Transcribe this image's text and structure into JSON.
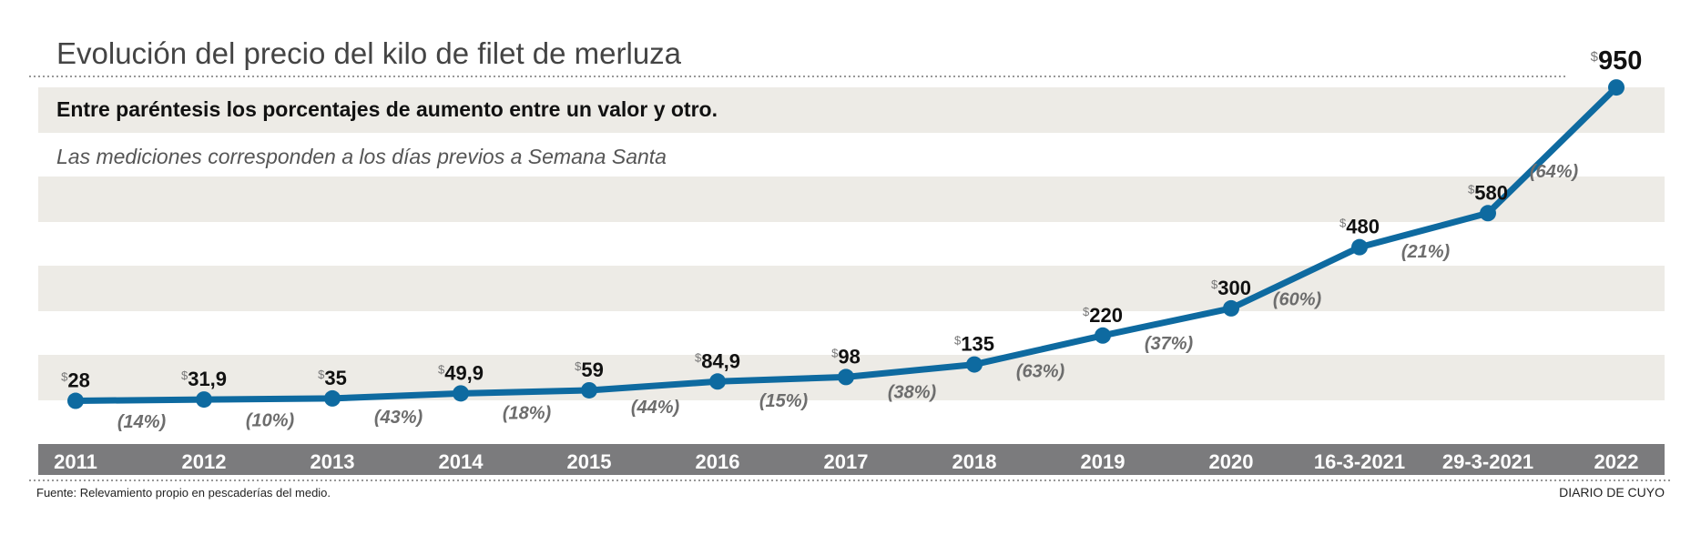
{
  "header": {
    "title": "Evolución del precio del kilo de filet de merluza",
    "note_bold": "Entre paréntesis los porcentajes de aumento entre un valor y otro.",
    "note_italic": "Las mediciones corresponden a los días previos a Semana Santa"
  },
  "footer": {
    "source": "Fuente: Relevamiento propio en pescaderías del medio.",
    "brand": "DIARIO DE CUYO"
  },
  "colors": {
    "line": "#0e6aa0",
    "band": "#edebe6",
    "axis_bar": "#7b7b7d",
    "pct_text": "#6d6d6d",
    "title_text": "#444444"
  },
  "chart_data": {
    "type": "line",
    "currency_symbol": "$",
    "categories": [
      "2011",
      "2012",
      "2013",
      "2014",
      "2015",
      "2016",
      "2017",
      "2018",
      "2019",
      "2020",
      "16-3-2021",
      "29-3-2021",
      "2022"
    ],
    "values": [
      28,
      31.9,
      35,
      49.9,
      59,
      84.9,
      98,
      135,
      220,
      300,
      480,
      580,
      950
    ],
    "value_labels": [
      "28",
      "31,9",
      "35",
      "49,9",
      "59",
      "84,9",
      "98",
      "135",
      "220",
      "300",
      "480",
      "580",
      "950"
    ],
    "pct_labels": [
      "(14%)",
      "(10%)",
      "(43%)",
      "(18%)",
      "(44%)",
      "(15%)",
      "(38%)",
      "(63%)",
      "(37%)",
      "(60%)",
      "(21%)",
      "(64%)"
    ],
    "ylim": [
      0,
      1000
    ],
    "grid": "alternating bands",
    "xlabel": "",
    "ylabel": ""
  }
}
